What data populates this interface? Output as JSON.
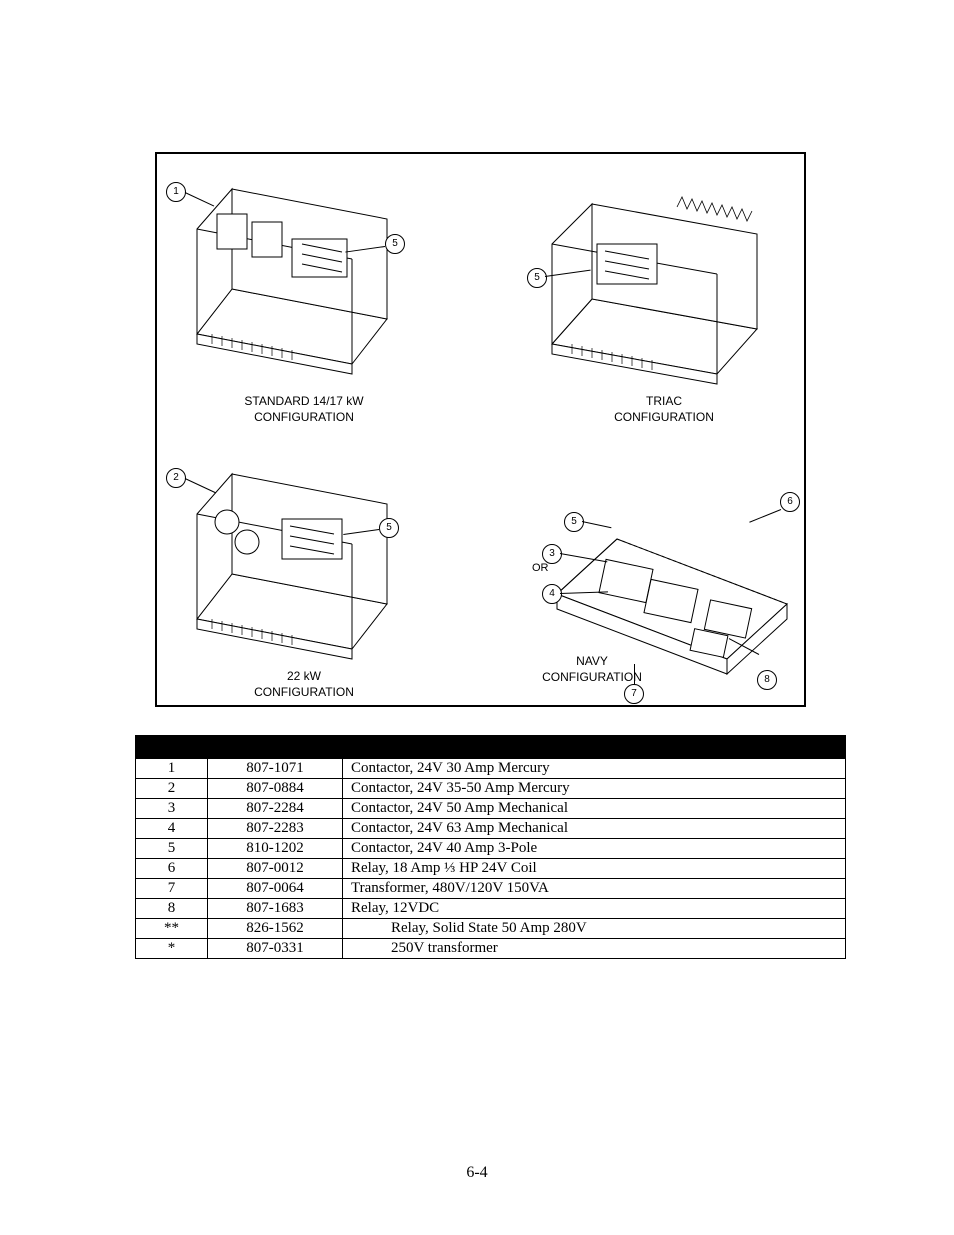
{
  "diagram": {
    "panels": [
      {
        "id": "standard",
        "label_line1": "STANDARD 14/17 kW",
        "label_line2": "CONFIGURATION"
      },
      {
        "id": "triac",
        "label_line1": "TRIAC",
        "label_line2": "CONFIGURATION"
      },
      {
        "id": "22kw",
        "label_line1": "22 kW",
        "label_line2": "CONFIGURATION"
      },
      {
        "id": "navy",
        "label_line1": "NAVY",
        "label_line2": "CONFIGURATION"
      }
    ],
    "or_label": "OR",
    "callouts": {
      "c1": "1",
      "c2": "2",
      "c3": "3",
      "c4": "4",
      "c5": "5",
      "c6": "6",
      "c7": "7",
      "c8": "8"
    }
  },
  "table": {
    "header": {
      "item": "",
      "part": "",
      "desc": ""
    },
    "rows": [
      {
        "item": "1",
        "part": "807-1071",
        "desc": "Contactor, 24V 30 Amp Mercury",
        "indent": false
      },
      {
        "item": "2",
        "part": "807-0884",
        "desc": "Contactor, 24V 35-50 Amp Mercury",
        "indent": false
      },
      {
        "item": "3",
        "part": "807-2284",
        "desc": "Contactor, 24V 50 Amp Mechanical",
        "indent": false
      },
      {
        "item": "4",
        "part": "807-2283",
        "desc": "Contactor, 24V 63 Amp Mechanical",
        "indent": false
      },
      {
        "item": "5",
        "part": "810-1202",
        "desc": "Contactor, 24V 40 Amp 3-Pole",
        "indent": false
      },
      {
        "item": "6",
        "part": "807-0012",
        "desc": "Relay, 18 Amp ⅓ HP 24V Coil",
        "indent": false
      },
      {
        "item": "7",
        "part": "807-0064",
        "desc": "Transformer, 480V/120V 150VA",
        "indent": false
      },
      {
        "item": "8",
        "part": "807-1683",
        "desc": "Relay, 12VDC",
        "indent": false
      },
      {
        "item": "**",
        "part": "826-1562",
        "desc": "Relay, Solid State 50 Amp 280V",
        "indent": true
      },
      {
        "item": "*",
        "part": "807-0331",
        "desc": "250V transformer",
        "indent": true
      }
    ]
  },
  "page_number": "6-4",
  "layout": {
    "page_num_top": 1164
  }
}
